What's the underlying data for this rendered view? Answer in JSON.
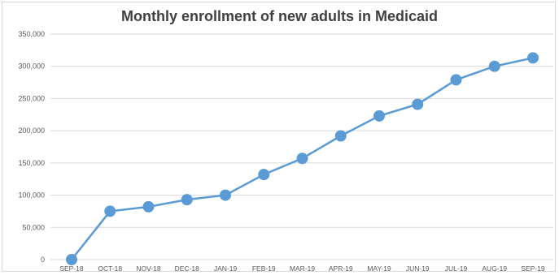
{
  "chart_data": {
    "type": "line",
    "title": "Monthly enrollment of new adults in Medicaid",
    "xlabel": "",
    "ylabel": "",
    "categories": [
      "SEP-18",
      "OCT-18",
      "NOV-18",
      "DEC-18",
      "JAN-19",
      "FEB-19",
      "MAR-19",
      "APR-19",
      "MAY-19",
      "JUN-19",
      "JUL-19",
      "AUG-19",
      "SEP-19"
    ],
    "series": [
      {
        "values": [
          0,
          75000,
          82000,
          93000,
          100000,
          132000,
          157000,
          192000,
          223000,
          241000,
          279000,
          300000,
          313000
        ]
      }
    ],
    "ylim": [
      0,
      350000
    ],
    "yticks": [
      0,
      50000,
      100000,
      150000,
      200000,
      250000,
      300000,
      350000
    ],
    "ytick_labels": [
      "0",
      "50,000",
      "100,000",
      "150,000",
      "200,000",
      "250,000",
      "300,000",
      "350,000"
    ],
    "grid": true,
    "legend": "none",
    "colors": {
      "line": "#5b9bd5",
      "grid": "#d9d9d9",
      "text": "#595959",
      "title": "#404040"
    }
  }
}
